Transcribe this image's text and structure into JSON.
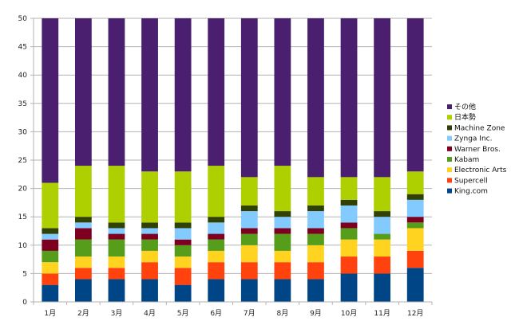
{
  "chart_data": {
    "type": "bar",
    "stacked": true,
    "categories": [
      "1月",
      "2月",
      "3月",
      "4月",
      "5月",
      "6月",
      "7月",
      "8月",
      "9月",
      "10月",
      "11月",
      "12月"
    ],
    "ylim": [
      0,
      50
    ],
    "y_ticks": [
      0,
      5,
      10,
      15,
      20,
      25,
      30,
      35,
      40,
      45,
      50
    ],
    "grid": true,
    "legend_position": "right",
    "series": [
      {
        "name": "King.com",
        "color": "#004586",
        "values": [
          3,
          4,
          4,
          4,
          3,
          4,
          4,
          4,
          4,
          5,
          5,
          6
        ]
      },
      {
        "name": "Supercell",
        "color": "#ff420e",
        "values": [
          2,
          2,
          2,
          3,
          3,
          3,
          3,
          3,
          3,
          3,
          3,
          3
        ]
      },
      {
        "name": "Electronic Arts",
        "color": "#ffd320",
        "values": [
          2,
          2,
          2,
          2,
          2,
          2,
          3,
          2,
          3,
          3,
          3,
          4
        ]
      },
      {
        "name": "Kabam",
        "color": "#579d1c",
        "values": [
          2,
          3,
          3,
          2,
          2,
          2,
          2,
          3,
          2,
          2,
          1,
          1
        ]
      },
      {
        "name": "Warner Bros.",
        "color": "#7e0021",
        "values": [
          2,
          2,
          1,
          1,
          1,
          1,
          1,
          1,
          1,
          1,
          0,
          1
        ]
      },
      {
        "name": "Zynga Inc.",
        "color": "#83caff",
        "values": [
          1,
          1,
          1,
          1,
          2,
          2,
          3,
          2,
          3,
          3,
          3,
          3
        ]
      },
      {
        "name": "Machine Zone",
        "color": "#314004",
        "values": [
          1,
          1,
          1,
          1,
          1,
          1,
          1,
          1,
          1,
          1,
          1,
          1
        ]
      },
      {
        "name": "日本勢",
        "color": "#aecf00",
        "values": [
          8,
          9,
          10,
          9,
          9,
          9,
          5,
          8,
          5,
          4,
          6,
          4
        ]
      },
      {
        "name": "その他",
        "color": "#4b1f6f",
        "values": [
          29,
          26,
          26,
          27,
          27,
          26,
          28,
          26,
          28,
          28,
          28,
          27
        ]
      }
    ]
  }
}
